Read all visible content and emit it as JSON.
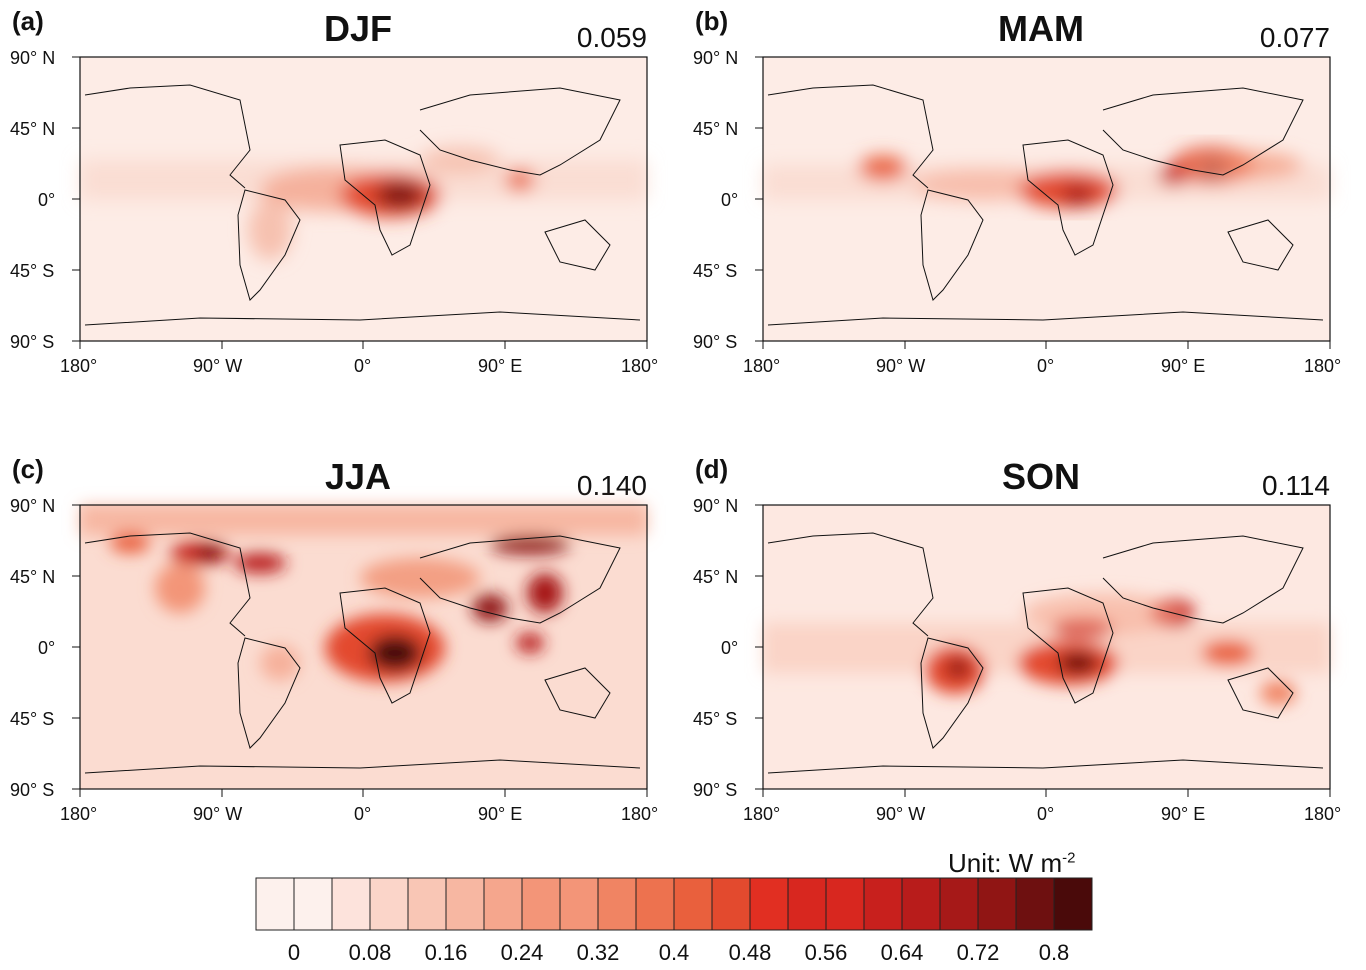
{
  "legend": {
    "unit_prefix": "Unit: W m",
    "unit_exponent": "-2",
    "colors": [
      "#fdf1ed",
      "#fde3dc",
      "#fbd5c9",
      "#f9c6b5",
      "#f7b7a2",
      "#f5a68d",
      "#f39578",
      "#f08463",
      "#ed724f",
      "#e9603d",
      "#e34a2e",
      "#e12f22",
      "#d8271f",
      "#c8201d",
      "#b81c1b",
      "#a61918",
      "#901514",
      "#6e1010",
      "#4a0a0a"
    ],
    "labels": [
      "0",
      "0.08",
      "0.16",
      "0.24",
      "0.32",
      "0.4",
      "0.48",
      "0.56",
      "0.64",
      "0.72",
      "0.8"
    ]
  },
  "lat_ticks": [
    "90° N",
    "45° N",
    "0°",
    "45° S",
    "90° S"
  ],
  "lon_ticks": [
    "180°",
    "90° W",
    "0°",
    "90° E",
    "180°"
  ],
  "panels": [
    {
      "letter": "(a)",
      "title": "DJF",
      "value": "0.059"
    },
    {
      "letter": "(b)",
      "title": "MAM",
      "value": "0.077"
    },
    {
      "letter": "(c)",
      "title": "JJA",
      "value": "0.140"
    },
    {
      "letter": "(d)",
      "title": "SON",
      "value": "0.114"
    }
  ]
}
